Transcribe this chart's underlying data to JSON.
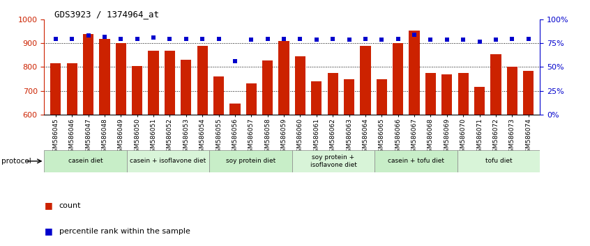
{
  "title": "GDS3923 / 1374964_at",
  "samples": [
    "GSM586045",
    "GSM586046",
    "GSM586047",
    "GSM586048",
    "GSM586049",
    "GSM586050",
    "GSM586051",
    "GSM586052",
    "GSM586053",
    "GSM586054",
    "GSM586055",
    "GSM586056",
    "GSM586057",
    "GSM586058",
    "GSM586059",
    "GSM586060",
    "GSM586061",
    "GSM586062",
    "GSM586063",
    "GSM586064",
    "GSM586065",
    "GSM586066",
    "GSM586067",
    "GSM586068",
    "GSM586069",
    "GSM586070",
    "GSM586071",
    "GSM586072",
    "GSM586073",
    "GSM586074"
  ],
  "counts": [
    815,
    815,
    940,
    920,
    900,
    805,
    868,
    870,
    830,
    889,
    760,
    645,
    730,
    828,
    910,
    845,
    740,
    775,
    748,
    890,
    750,
    900,
    955,
    775,
    770,
    775,
    715,
    855,
    800,
    785
  ],
  "percentile_ranks": [
    80,
    80,
    83,
    82,
    80,
    80,
    81,
    80,
    80,
    80,
    80,
    56,
    79,
    80,
    80,
    80,
    79,
    80,
    79,
    80,
    79,
    80,
    84,
    79,
    79,
    79,
    77,
    79,
    80,
    80
  ],
  "groups": [
    {
      "label": "casein diet",
      "start": 0,
      "end": 5
    },
    {
      "label": "casein + isoflavone diet",
      "start": 5,
      "end": 10
    },
    {
      "label": "soy protein diet",
      "start": 10,
      "end": 15
    },
    {
      "label": "soy protein +\nisoflavone diet",
      "start": 15,
      "end": 20
    },
    {
      "label": "casein + tofu diet",
      "start": 20,
      "end": 25
    },
    {
      "label": "tofu diet",
      "start": 25,
      "end": 30
    }
  ],
  "group_colors": [
    "#c8eec8",
    "#d8f4d8",
    "#c8eec8",
    "#d8f4d8",
    "#c8eec8",
    "#d8f4d8"
  ],
  "bar_color": "#CC2200",
  "dot_color": "#0000CC",
  "ylim_left": [
    600,
    1000
  ],
  "ylim_right": [
    0,
    100
  ],
  "yticks_left": [
    600,
    700,
    800,
    900,
    1000
  ],
  "yticks_right": [
    0,
    25,
    50,
    75,
    100
  ],
  "grid_lines": [
    700,
    800,
    900
  ],
  "background_color": "#ffffff"
}
